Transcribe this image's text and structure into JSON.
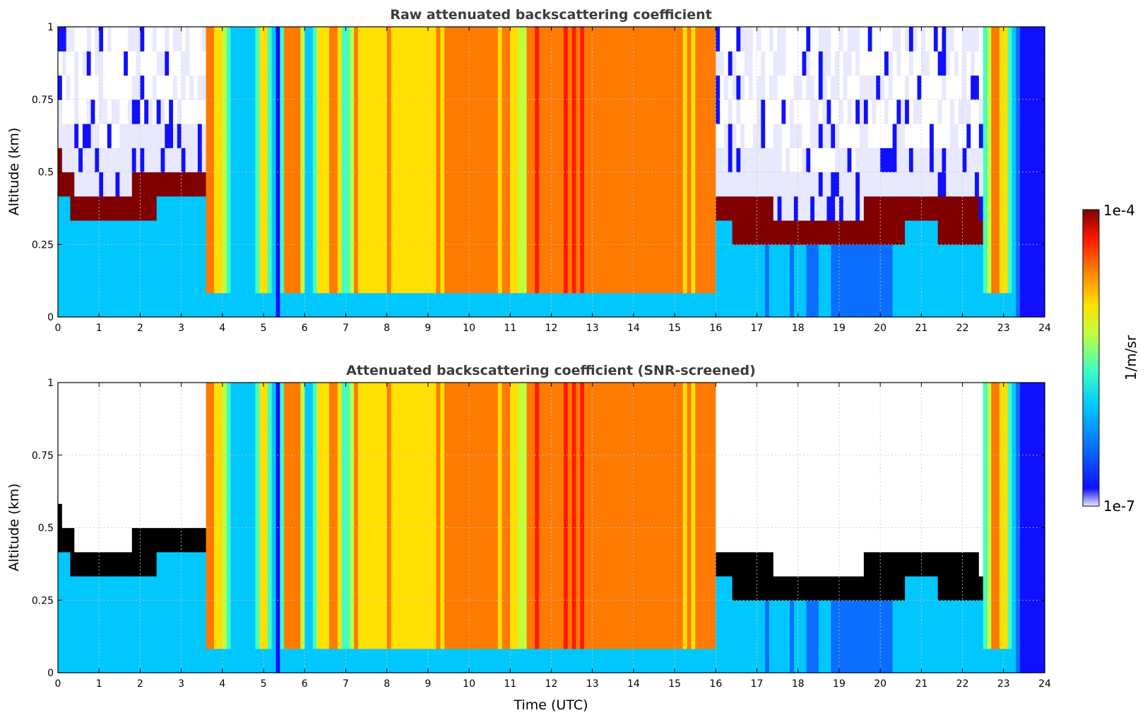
{
  "chart_data": [
    {
      "type": "heatmap",
      "title": "Raw attenuated backscattering coefficient",
      "xlabel": "",
      "ylabel": "Altitude (km)",
      "xlim": [
        0,
        24
      ],
      "ylim": [
        0,
        1
      ],
      "x_ticks": [
        "0",
        "1",
        "2",
        "3",
        "4",
        "5",
        "6",
        "7",
        "8",
        "9",
        "10",
        "11",
        "12",
        "13",
        "14",
        "15",
        "16",
        "17",
        "18",
        "19",
        "20",
        "21",
        "22",
        "23",
        "24"
      ],
      "y_ticks": [
        "0",
        "0.25",
        "0.5",
        "0.75",
        "1"
      ],
      "grid": true,
      "layer_top_altitude_km": [
        [
          0,
          0.45
        ],
        [
          0.5,
          0.3
        ],
        [
          1.0,
          0.3
        ],
        [
          1.5,
          0.32
        ],
        [
          2.0,
          0.35
        ],
        [
          2.5,
          0.38
        ],
        [
          3.0,
          0.4
        ],
        [
          3.5,
          0.38
        ],
        [
          16.0,
          0.3
        ],
        [
          17.0,
          0.28
        ],
        [
          18.0,
          0.22
        ],
        [
          19.0,
          0.22
        ],
        [
          20.0,
          0.28
        ],
        [
          21.0,
          0.3
        ],
        [
          22.0,
          0.28
        ],
        [
          22.5,
          0.25
        ]
      ]
    },
    {
      "type": "heatmap",
      "title": "Attenuated backscattering coefficient (SNR-screened)",
      "xlabel": "Time (UTC)",
      "ylabel": "Altitude (km)",
      "xlim": [
        0,
        24
      ],
      "ylim": [
        0,
        1
      ],
      "x_ticks": [
        "0",
        "1",
        "2",
        "3",
        "4",
        "5",
        "6",
        "7",
        "8",
        "9",
        "10",
        "11",
        "12",
        "13",
        "14",
        "15",
        "16",
        "17",
        "18",
        "19",
        "20",
        "21",
        "22",
        "23",
        "24"
      ],
      "y_ticks": [
        "0",
        "0.25",
        "0.5",
        "0.75",
        "1"
      ],
      "grid": true,
      "screened_values_color": "#000000"
    }
  ],
  "colorbar": {
    "label": "1/m/sr",
    "max_label": "1e-4",
    "min_label": "1e-7",
    "scale": "log",
    "colormap": "jet",
    "colors": [
      "#e8e8ff",
      "#1010ff",
      "#0a6fff",
      "#00c8ff",
      "#40ffbf",
      "#c0ff40",
      "#ffe000",
      "#ff7a00",
      "#ff1a00",
      "#800000"
    ]
  }
}
